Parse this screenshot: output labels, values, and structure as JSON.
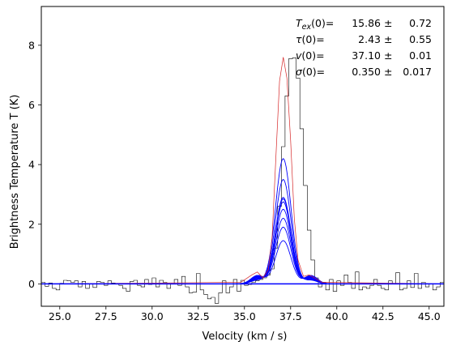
{
  "chart_data": {
    "type": "line",
    "xlabel": "Velocity (km / s)",
    "ylabel": "Brightness Temperature T (K)",
    "xlim": [
      24.0,
      45.8
    ],
    "ylim": [
      -0.75,
      9.3
    ],
    "xticks": [
      25.0,
      27.5,
      30.0,
      32.5,
      35.0,
      37.5,
      40.0,
      42.5,
      45.0
    ],
    "xtick_labels": [
      "25.0",
      "27.5",
      "30.0",
      "32.5",
      "35.0",
      "37.5",
      "40.0",
      "42.5",
      "45.0"
    ],
    "yticks": [
      0,
      2,
      4,
      6,
      8
    ],
    "ytick_labels": [
      "0",
      "2",
      "4",
      "6",
      "8"
    ],
    "grid": false,
    "colors": {
      "observed": "#000000",
      "model_total": "#d62728",
      "components": "#0000ff",
      "baseline": "#0000ff"
    },
    "annotations": [
      {
        "param_sym": "T",
        "param_sub": "ex",
        "param_rest": "(0)=",
        "value": "15.86",
        "pm": "±",
        "error": "0.72"
      },
      {
        "param_sym": "τ",
        "param_sub": "",
        "param_rest": "(0)=",
        "value": "2.43",
        "pm": "±",
        "error": "0.55"
      },
      {
        "param_sym": "v",
        "param_sub": "",
        "param_rest": "(0)=",
        "value": "37.10",
        "pm": "±",
        "error": "0.01"
      },
      {
        "param_sym": "σ",
        "param_sub": "",
        "param_rest": "(0)=",
        "value": "0.350",
        "pm": "±",
        "error": "0.017"
      }
    ],
    "observed_step": {
      "start": 24.0,
      "step": 0.2,
      "values": [
        0.05,
        -0.08,
        0.03,
        -0.15,
        -0.2,
        0.02,
        0.12,
        0.1,
        0.05,
        0.1,
        -0.1,
        0.08,
        -0.15,
        0.0,
        -0.12,
        0.08,
        0.05,
        -0.05,
        0.1,
        0.03,
        0.0,
        -0.05,
        -0.15,
        -0.25,
        0.08,
        0.12,
        -0.05,
        -0.1,
        0.15,
        -0.02,
        0.2,
        -0.1,
        0.12,
        0.05,
        -0.15,
        0.0,
        0.15,
        -0.05,
        0.25,
        -0.1,
        -0.3,
        -0.28,
        0.35,
        -0.2,
        -0.35,
        -0.5,
        -0.45,
        -0.65,
        -0.3,
        0.1,
        -0.3,
        -0.1,
        0.15,
        -0.25,
        0.12,
        -0.05,
        -0.02,
        0.05,
        0.1,
        0.15,
        0.2,
        0.3,
        0.5,
        1.2,
        2.6,
        4.6,
        6.3,
        7.55,
        7.58,
        6.9,
        5.2,
        3.3,
        1.8,
        0.8,
        0.2,
        -0.1,
        0.05,
        -0.2,
        0.15,
        -0.25,
        0.1,
        -0.05,
        0.3,
        0.05,
        -0.15,
        0.4,
        -0.2,
        -0.1,
        -0.15,
        -0.05,
        0.15,
        -0.05,
        -0.15,
        -0.2,
        0.1,
        0.0,
        0.38,
        -0.2,
        -0.15,
        0.1,
        -0.12,
        0.35,
        -0.15,
        0.05,
        -0.1,
        0.0,
        -0.2,
        -0.1,
        0.05
      ]
    },
    "model_total": {
      "x": [
        24.0,
        34.8,
        35.4,
        35.7,
        36.0,
        36.3,
        36.5,
        36.7,
        36.9,
        37.1,
        37.3,
        37.5,
        37.7,
        37.9,
        38.2,
        38.5,
        38.8,
        39.2,
        45.8
      ],
      "y": [
        0.0,
        0.05,
        0.3,
        0.4,
        0.2,
        0.5,
        1.6,
        4.2,
        6.8,
        7.6,
        6.9,
        4.8,
        2.2,
        0.8,
        0.25,
        0.3,
        0.2,
        0.05,
        0.0
      ]
    },
    "component_peaks": [
      4.2,
      3.5,
      2.9,
      2.85,
      2.75,
      2.5,
      2.2,
      1.9,
      1.45
    ],
    "component_center": 37.1,
    "component_sigma": 0.42,
    "baseline": 0
  }
}
